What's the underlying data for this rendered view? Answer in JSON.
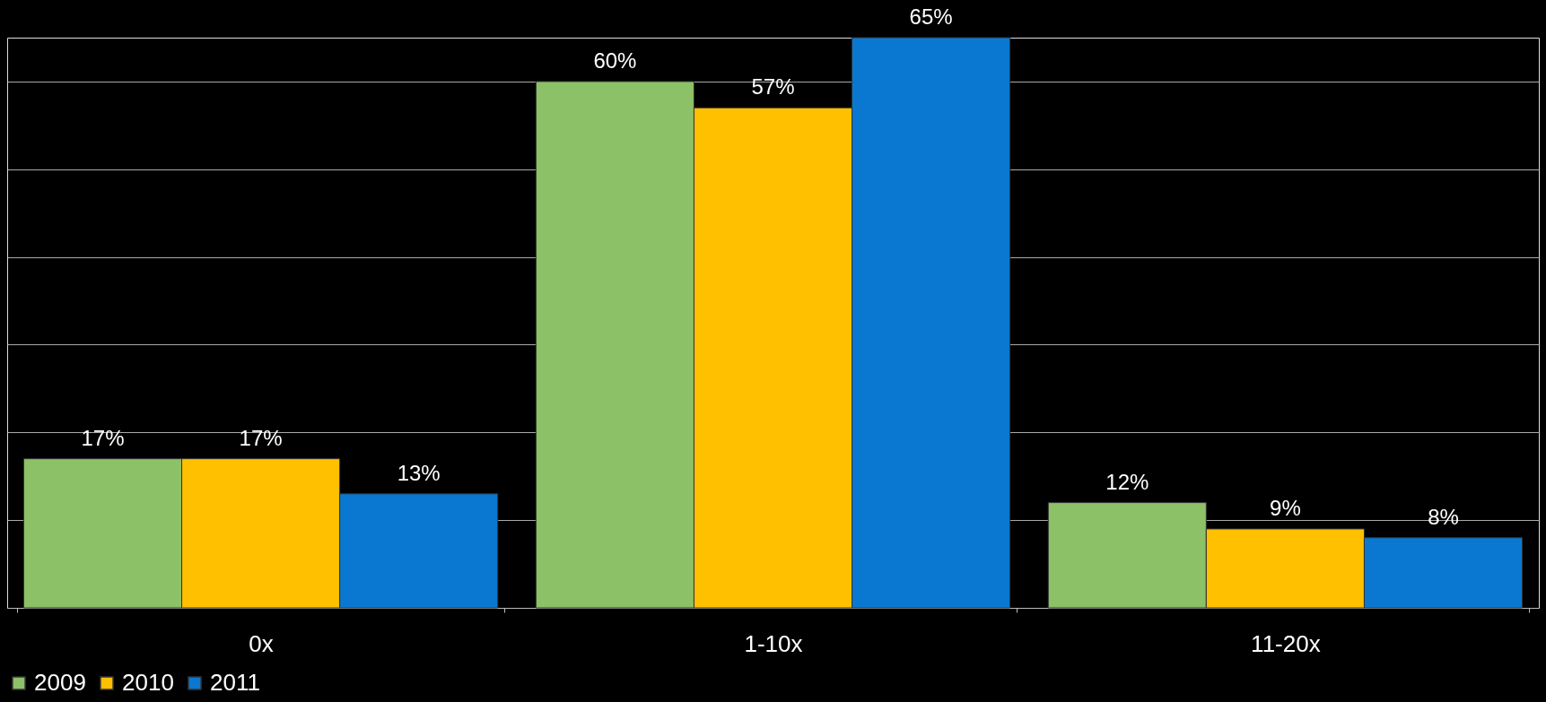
{
  "chart_data": {
    "type": "bar",
    "categories": [
      "0x",
      "1-10x",
      "11-20x"
    ],
    "series": [
      {
        "name": "2009",
        "color": "#8cc168",
        "values": [
          17,
          60,
          12
        ],
        "value_labels": [
          "17%",
          "60%",
          "12%"
        ]
      },
      {
        "name": "2010",
        "color": "#ffc000",
        "values": [
          17,
          57,
          9
        ],
        "value_labels": [
          "17%",
          "57%",
          "9%"
        ]
      },
      {
        "name": "2011",
        "color": "#0a78d0",
        "values": [
          13,
          65,
          8
        ],
        "value_labels": [
          "13%",
          "65%",
          "8%"
        ]
      }
    ],
    "grid": "y",
    "legend": "bottom",
    "tick_labels": "x"
  }
}
